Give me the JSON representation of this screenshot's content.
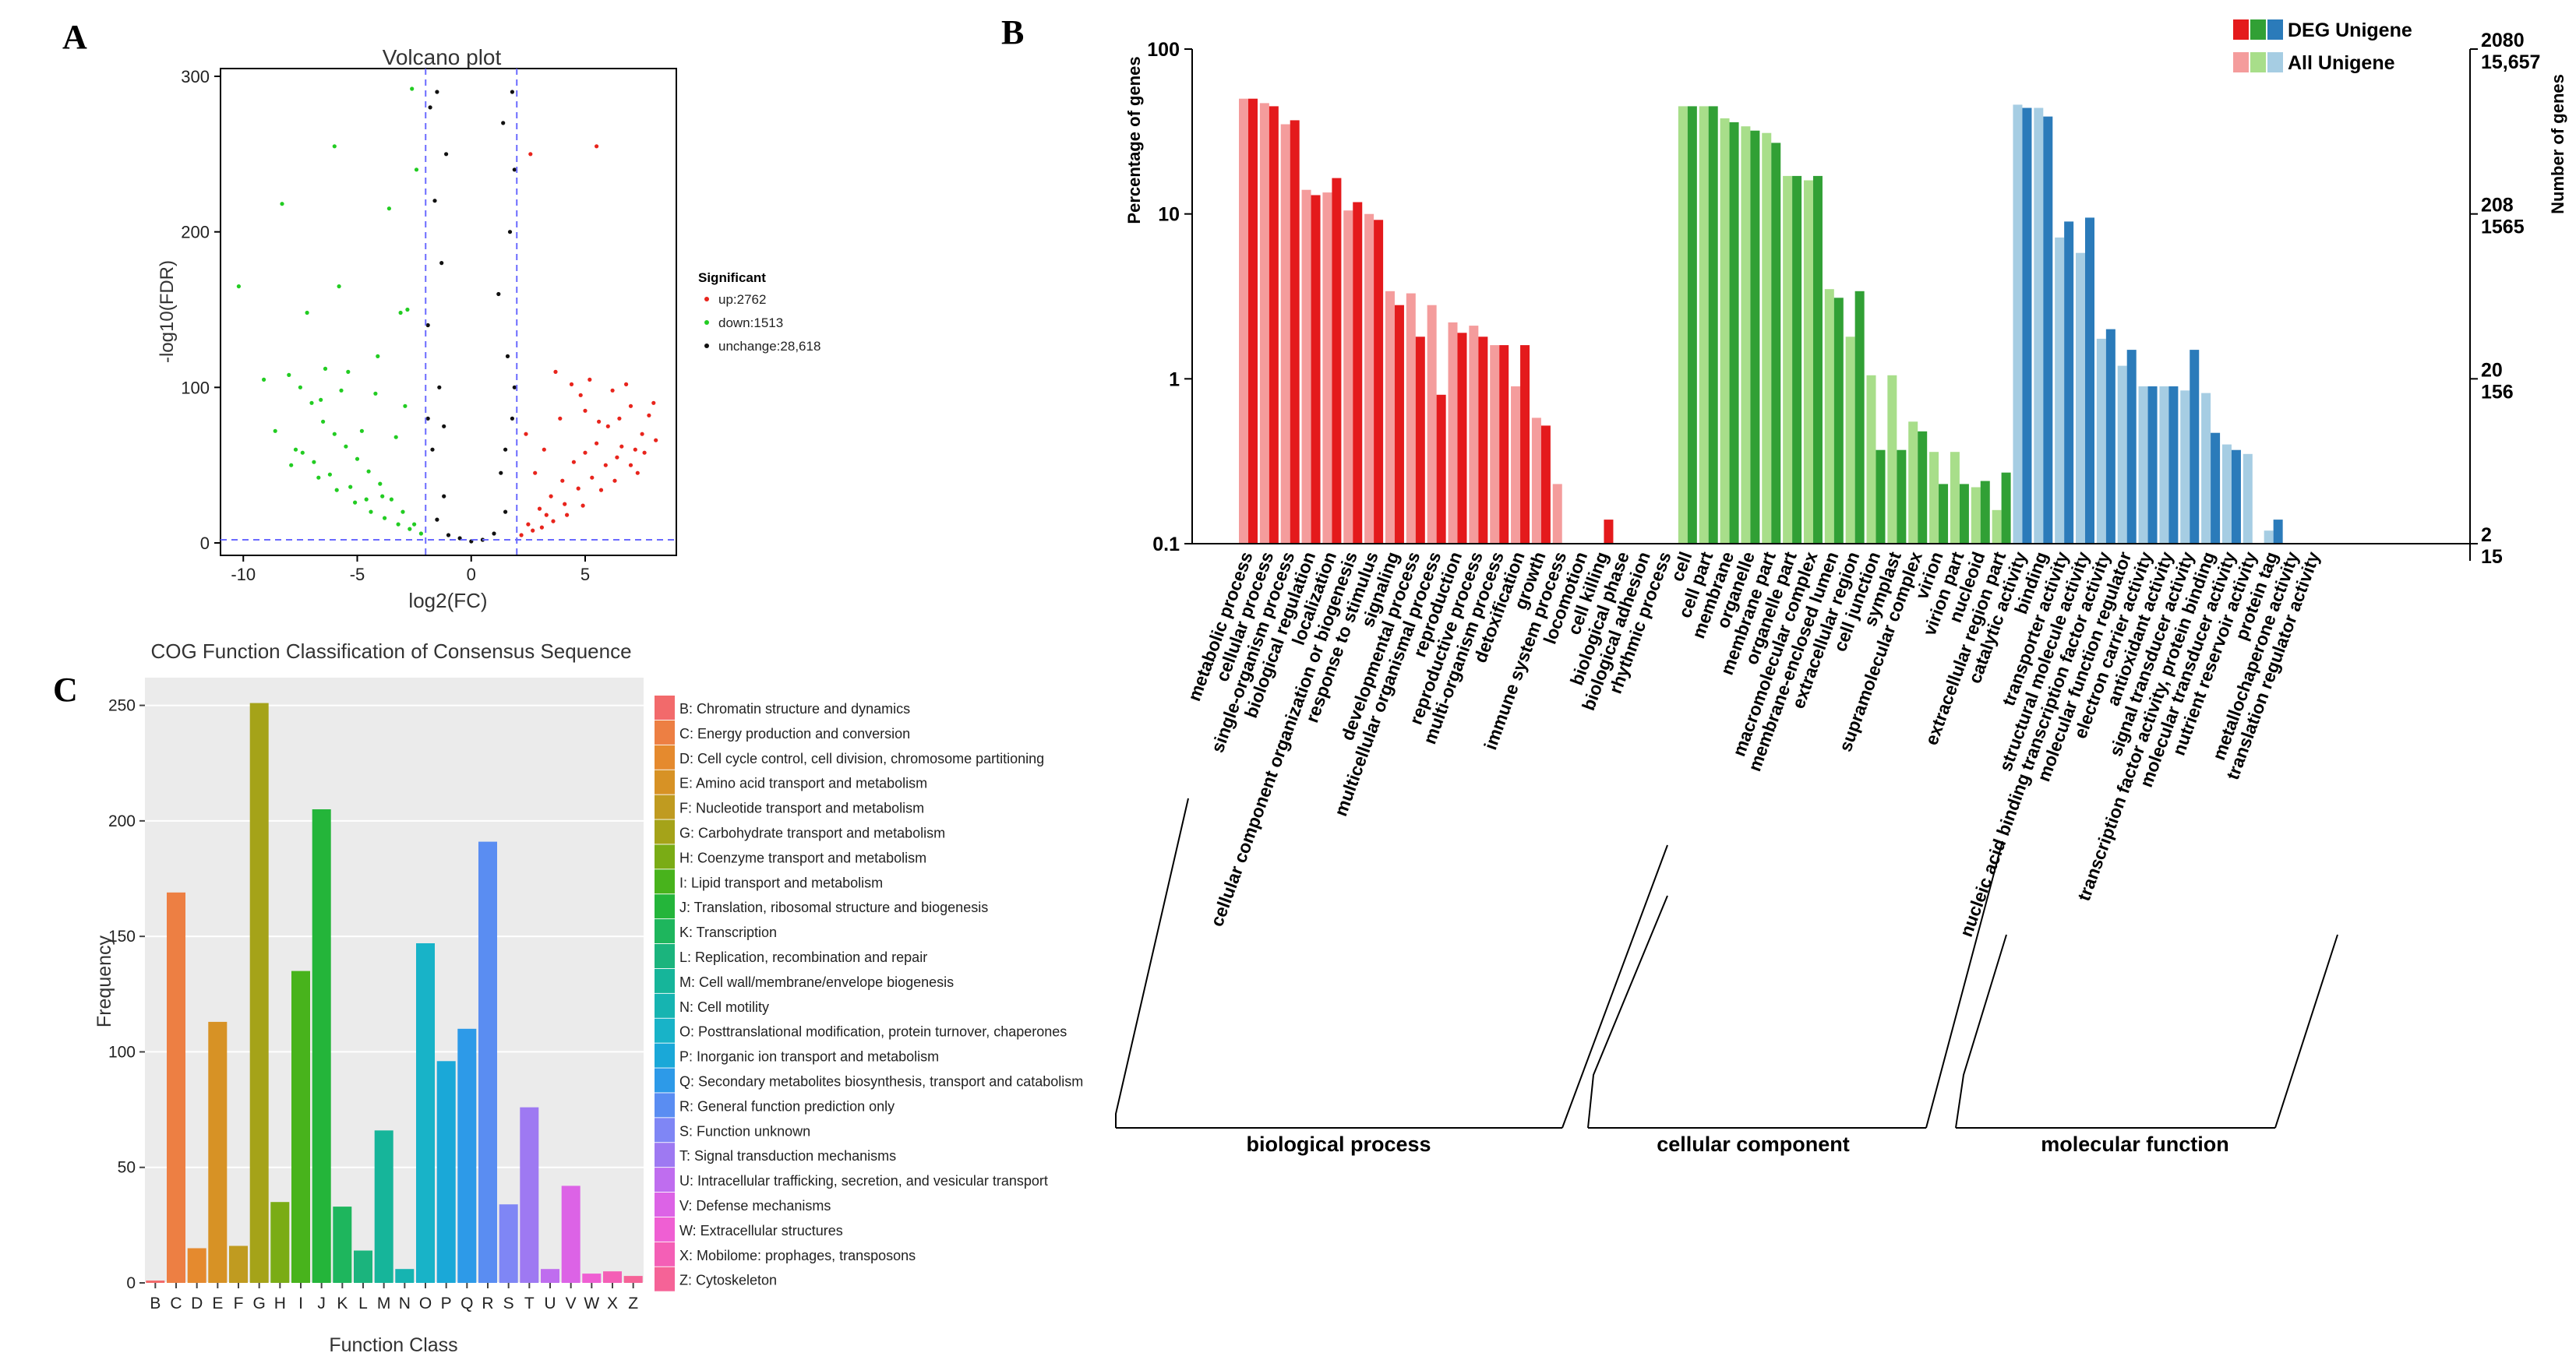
{
  "panels": {
    "a": {
      "letter": "A"
    },
    "b": {
      "letter": "B"
    },
    "c": {
      "letter": "C"
    }
  },
  "volcano": {
    "title": "Volcano plot",
    "xlabel": "log2(FC)",
    "ylabel": "-log10(FDR)",
    "x_ticks": [
      "-10",
      "-5",
      "0",
      "5"
    ],
    "x_tick_values": [
      -10,
      -5,
      0,
      5
    ],
    "y_ticks": [
      "0",
      "100",
      "200",
      "300"
    ],
    "y_tick_values": [
      0,
      100,
      200,
      300
    ],
    "xlim": [
      -11,
      9
    ],
    "ylim": [
      -8,
      305
    ],
    "fc_threshold": 2,
    "fdr_threshold": 2,
    "legend_title": "Significant",
    "legend": [
      {
        "label": "up:2762",
        "color": "#e8241c"
      },
      {
        "label": "down:1513",
        "color": "#22cc22"
      },
      {
        "label": "unchange:28,618",
        "color": "#111111"
      }
    ]
  },
  "go": {
    "ylabel_left": "Percentage of genes",
    "ylabel_right": "Number of genes",
    "left_ticks": [
      "0.1",
      "1",
      "10",
      "100"
    ],
    "left_tick_values": [
      0.1,
      1,
      10,
      100
    ],
    "right_ticks_top": [
      "2080",
      "208",
      "20",
      "2"
    ],
    "right_ticks_bottom": [
      "15,657",
      "1565",
      "156",
      "15"
    ],
    "legend": {
      "deg_label": "DEG Unigene",
      "all_label": "All Unigene",
      "deg_colors": [
        "#e41a1c",
        "#31a035",
        "#2b7bba"
      ],
      "all_colors": [
        "#f49c9c",
        "#a8de8a",
        "#a6cde3"
      ]
    },
    "groups": [
      {
        "label": "biological process",
        "color_deg": "#e41a1c",
        "color_all": "#f49c9c"
      },
      {
        "label": "cellular component",
        "color_deg": "#31a035",
        "color_all": "#a8de8a"
      },
      {
        "label": "molecular function",
        "color_deg": "#2b7bba",
        "color_all": "#a6cde3"
      }
    ]
  },
  "chart_data": [
    {
      "type": "scatter",
      "title": "Volcano plot",
      "xlabel": "log2(FC)",
      "ylabel": "-log10(FDR)",
      "xlim": [
        -11,
        9
      ],
      "ylim": [
        -8,
        305
      ],
      "series": [
        {
          "name": "up:2762",
          "color": "#e8241c",
          "points": [
            [
              2.5,
              12
            ],
            [
              3,
              22
            ],
            [
              3.5,
              30
            ],
            [
              4,
              40
            ],
            [
              4.5,
              52
            ],
            [
              5,
              58
            ],
            [
              5.5,
              64
            ],
            [
              6,
              75
            ],
            [
              6.5,
              80
            ],
            [
              7,
              88
            ],
            [
              7.5,
              70
            ],
            [
              8,
              90
            ],
            [
              3.2,
              60
            ],
            [
              4.8,
              95
            ],
            [
              5.2,
              105
            ],
            [
              6.2,
              98
            ],
            [
              2.8,
              45
            ],
            [
              7.2,
              60
            ],
            [
              3.9,
              80
            ],
            [
              4.4,
              102
            ],
            [
              5.6,
              78
            ],
            [
              6.8,
              102
            ],
            [
              7.8,
              82
            ],
            [
              2.4,
              70
            ],
            [
              3.7,
              110
            ],
            [
              5,
              85
            ],
            [
              5.5,
              255
            ],
            [
              2.6,
              250
            ],
            [
              6.6,
              62
            ],
            [
              7.3,
              45
            ],
            [
              3.3,
              18
            ],
            [
              4.1,
              25
            ],
            [
              4.7,
              35
            ],
            [
              5.3,
              42
            ],
            [
              5.9,
              50
            ],
            [
              6.4,
              55
            ],
            [
              2.2,
              5
            ],
            [
              2.7,
              8
            ],
            [
              3.1,
              10
            ],
            [
              3.6,
              14
            ],
            [
              4.2,
              18
            ],
            [
              4.9,
              24
            ],
            [
              5.7,
              34
            ],
            [
              6.3,
              40
            ],
            [
              7,
              50
            ],
            [
              7.6,
              58
            ],
            [
              8.1,
              66
            ]
          ]
        },
        {
          "name": "down:1513",
          "color": "#22cc22",
          "points": [
            [
              -2.5,
              12
            ],
            [
              -3,
              20
            ],
            [
              -3.5,
              28
            ],
            [
              -4,
              38
            ],
            [
              -4.5,
              46
            ],
            [
              -5,
              54
            ],
            [
              -5.5,
              62
            ],
            [
              -6,
              70
            ],
            [
              -6.5,
              78
            ],
            [
              -7,
              90
            ],
            [
              -7.5,
              100
            ],
            [
              -8,
              108
            ],
            [
              -3.3,
              68
            ],
            [
              -4.2,
              96
            ],
            [
              -5.4,
              110
            ],
            [
              -2.8,
              150
            ],
            [
              -3.6,
              215
            ],
            [
              -6,
              255
            ],
            [
              -9.1,
              105
            ],
            [
              -10.2,
              165
            ],
            [
              -8.3,
              218
            ],
            [
              -7.2,
              148
            ],
            [
              -5.7,
              98
            ],
            [
              -6.6,
              92
            ],
            [
              -7.7,
              60
            ],
            [
              -4.8,
              72
            ],
            [
              -2.9,
              88
            ],
            [
              -3.1,
              148
            ],
            [
              -2.4,
              240
            ],
            [
              -2.6,
              292
            ],
            [
              -3.9,
              30
            ],
            [
              -4.6,
              28
            ],
            [
              -5.3,
              36
            ],
            [
              -6.2,
              44
            ],
            [
              -6.9,
              52
            ],
            [
              -7.4,
              58
            ],
            [
              -8.6,
              72
            ],
            [
              -2.2,
              6
            ],
            [
              -2.7,
              9
            ],
            [
              -3.2,
              12
            ],
            [
              -3.8,
              16
            ],
            [
              -4.4,
              20
            ],
            [
              -5.1,
              26
            ],
            [
              -5.9,
              34
            ],
            [
              -6.7,
              42
            ],
            [
              -7.9,
              50
            ],
            [
              -4.1,
              120
            ],
            [
              -5.8,
              165
            ],
            [
              -6.4,
              112
            ]
          ]
        },
        {
          "name": "unchange:28,618",
          "color": "#111111",
          "points": [
            [
              0,
              1
            ],
            [
              -1,
              5
            ],
            [
              1,
              6
            ],
            [
              -1.5,
              15
            ],
            [
              1.5,
              20
            ],
            [
              -1.2,
              30
            ],
            [
              1.3,
              45
            ],
            [
              -1.7,
              60
            ],
            [
              1.8,
              80
            ],
            [
              -1.4,
              100
            ],
            [
              1.6,
              120
            ],
            [
              -1.9,
              140
            ],
            [
              1.2,
              160
            ],
            [
              -1.3,
              180
            ],
            [
              1.7,
              200
            ],
            [
              -1.6,
              220
            ],
            [
              1.9,
              240
            ],
            [
              -1.1,
              250
            ],
            [
              1.4,
              270
            ],
            [
              -1.8,
              280
            ],
            [
              1.8,
              290
            ],
            [
              -1.5,
              290
            ],
            [
              0.5,
              2
            ],
            [
              -0.5,
              3
            ],
            [
              1.9,
              100
            ],
            [
              -1.9,
              80
            ],
            [
              1.5,
              60
            ],
            [
              -1.2,
              75
            ]
          ]
        }
      ]
    },
    {
      "type": "bar",
      "title": "",
      "ylabel": "Percentage of genes",
      "ylabel_right": "Number of genes",
      "yscale": "log",
      "ylim": [
        0.1,
        100
      ],
      "categories": [
        "metabolic process",
        "cellular process",
        "single-organism process",
        "biological regulation",
        "localization",
        "cellular component organization or biogenesis",
        "response to stimulus",
        "signaling",
        "developmental process",
        "multicellular organismal process",
        "reproduction",
        "reproductive process",
        "multi-organism process",
        "detoxification",
        "growth",
        "immune system process",
        "locomotion",
        "cell killing",
        "biological phase",
        "biological adhesion",
        "rhythmic process",
        "cell",
        "cell part",
        "membrane",
        "organelle",
        "membrane part",
        "organelle part",
        "macromolecular complex",
        "membrane-enclosed lumen",
        "extracellular region",
        "cell junction",
        "symplast",
        "supramolecular complex",
        "virion",
        "virion part",
        "nucleoid",
        "extracellular region part",
        "catalytic activity",
        "binding",
        "transporter activity",
        "structural molecule activity",
        "nucleic acid binding transcription factor activity",
        "molecular function regulator",
        "electron carrier activity",
        "antioxidant activity",
        "signal transducer activity",
        "transcription factor activity, protein binding",
        "molecular transducer activity",
        "nutrient reservoir activity",
        "protein tag",
        "metallochaperone activity",
        "translation regulator activity"
      ],
      "category_group": [
        0,
        0,
        0,
        0,
        0,
        0,
        0,
        0,
        0,
        0,
        0,
        0,
        0,
        0,
        0,
        0,
        0,
        0,
        0,
        0,
        0,
        1,
        1,
        1,
        1,
        1,
        1,
        1,
        1,
        1,
        1,
        1,
        1,
        1,
        1,
        1,
        1,
        2,
        2,
        2,
        2,
        2,
        2,
        2,
        2,
        2,
        2,
        2,
        2,
        2,
        2,
        2
      ],
      "series": [
        {
          "name": "All Unigene",
          "values": [
            50,
            47,
            35,
            14,
            13.5,
            10.5,
            10,
            3.4,
            3.3,
            2.8,
            2.2,
            2.1,
            1.6,
            0.9,
            0.58,
            0.23,
            0,
            0,
            0,
            0,
            0,
            45,
            45,
            38,
            34,
            31,
            17,
            16,
            3.5,
            1.8,
            1.05,
            1.05,
            0.55,
            0.36,
            0.36,
            0.22,
            0.16,
            46,
            44,
            7.2,
            5.8,
            1.75,
            1.2,
            0.9,
            0.9,
            0.85,
            0.82,
            0.4,
            0.35,
            0.12,
            0,
            0
          ]
        },
        {
          "name": "DEG Unigene",
          "values": [
            50,
            45,
            37,
            13,
            16.5,
            11.8,
            9.2,
            2.8,
            1.8,
            0.8,
            1.9,
            1.8,
            1.6,
            1.6,
            0.52,
            0,
            0,
            0.14,
            0,
            0,
            0,
            45,
            45,
            36,
            32,
            27,
            17,
            17,
            3.1,
            3.4,
            0.37,
            0.37,
            0.48,
            0.23,
            0.23,
            0.24,
            0.27,
            44,
            39,
            9,
            9.5,
            2,
            1.5,
            0.9,
            0.9,
            1.5,
            0.47,
            0.37,
            0,
            0.14,
            0,
            0
          ]
        }
      ]
    },
    {
      "type": "bar",
      "title": "COG Function Classification of Consensus Sequence",
      "xlabel": "Function Class",
      "ylabel": "Frequency",
      "ylim": [
        0,
        262
      ],
      "y_ticks": [
        0,
        50,
        100,
        150,
        200,
        250
      ],
      "categories": [
        "B",
        "C",
        "D",
        "E",
        "F",
        "G",
        "H",
        "I",
        "J",
        "K",
        "L",
        "M",
        "N",
        "O",
        "P",
        "Q",
        "R",
        "S",
        "T",
        "U",
        "V",
        "W",
        "X",
        "Z"
      ],
      "values": [
        1,
        169,
        15,
        113,
        16,
        251,
        35,
        135,
        205,
        33,
        14,
        66,
        6,
        147,
        96,
        110,
        191,
        34,
        76,
        6,
        42,
        4,
        5,
        3
      ],
      "colors": [
        "#f26a6b",
        "#ed7f43",
        "#e58a2e",
        "#d79225",
        "#c09b20",
        "#a5a319",
        "#7aac15",
        "#48b31c",
        "#24b53a",
        "#1eb65d",
        "#1bb47d",
        "#16b59a",
        "#16b4b1",
        "#18b3c8",
        "#1aa8d8",
        "#2d9ae8",
        "#5a8df2",
        "#7f86f5",
        "#9e79f2",
        "#bf6def",
        "#dc63e6",
        "#ef5fd3",
        "#f45fb6",
        "#f56397"
      ],
      "legend": [
        "B: Chromatin structure and dynamics",
        "C: Energy production and conversion",
        "D: Cell cycle control, cell division, chromosome partitioning",
        "E: Amino acid transport and metabolism",
        "F: Nucleotide transport and metabolism",
        "G: Carbohydrate transport and metabolism",
        "H: Coenzyme transport and metabolism",
        "I: Lipid transport and metabolism",
        "J: Translation, ribosomal structure and biogenesis",
        "K: Transcription",
        "L: Replication, recombination and repair",
        "M: Cell wall/membrane/envelope biogenesis",
        "N: Cell motility",
        "O: Posttranslational modification, protein turnover, chaperones",
        "P: Inorganic ion transport and metabolism",
        "Q: Secondary metabolites biosynthesis, transport and catabolism",
        "R: General function prediction only",
        "S: Function unknown",
        "T: Signal transduction mechanisms",
        "U: Intracellular trafficking, secretion, and vesicular transport",
        "V: Defense mechanisms",
        "W: Extracellular structures",
        "X: Mobilome: prophages, transposons",
        "Z: Cytoskeleton"
      ]
    }
  ]
}
